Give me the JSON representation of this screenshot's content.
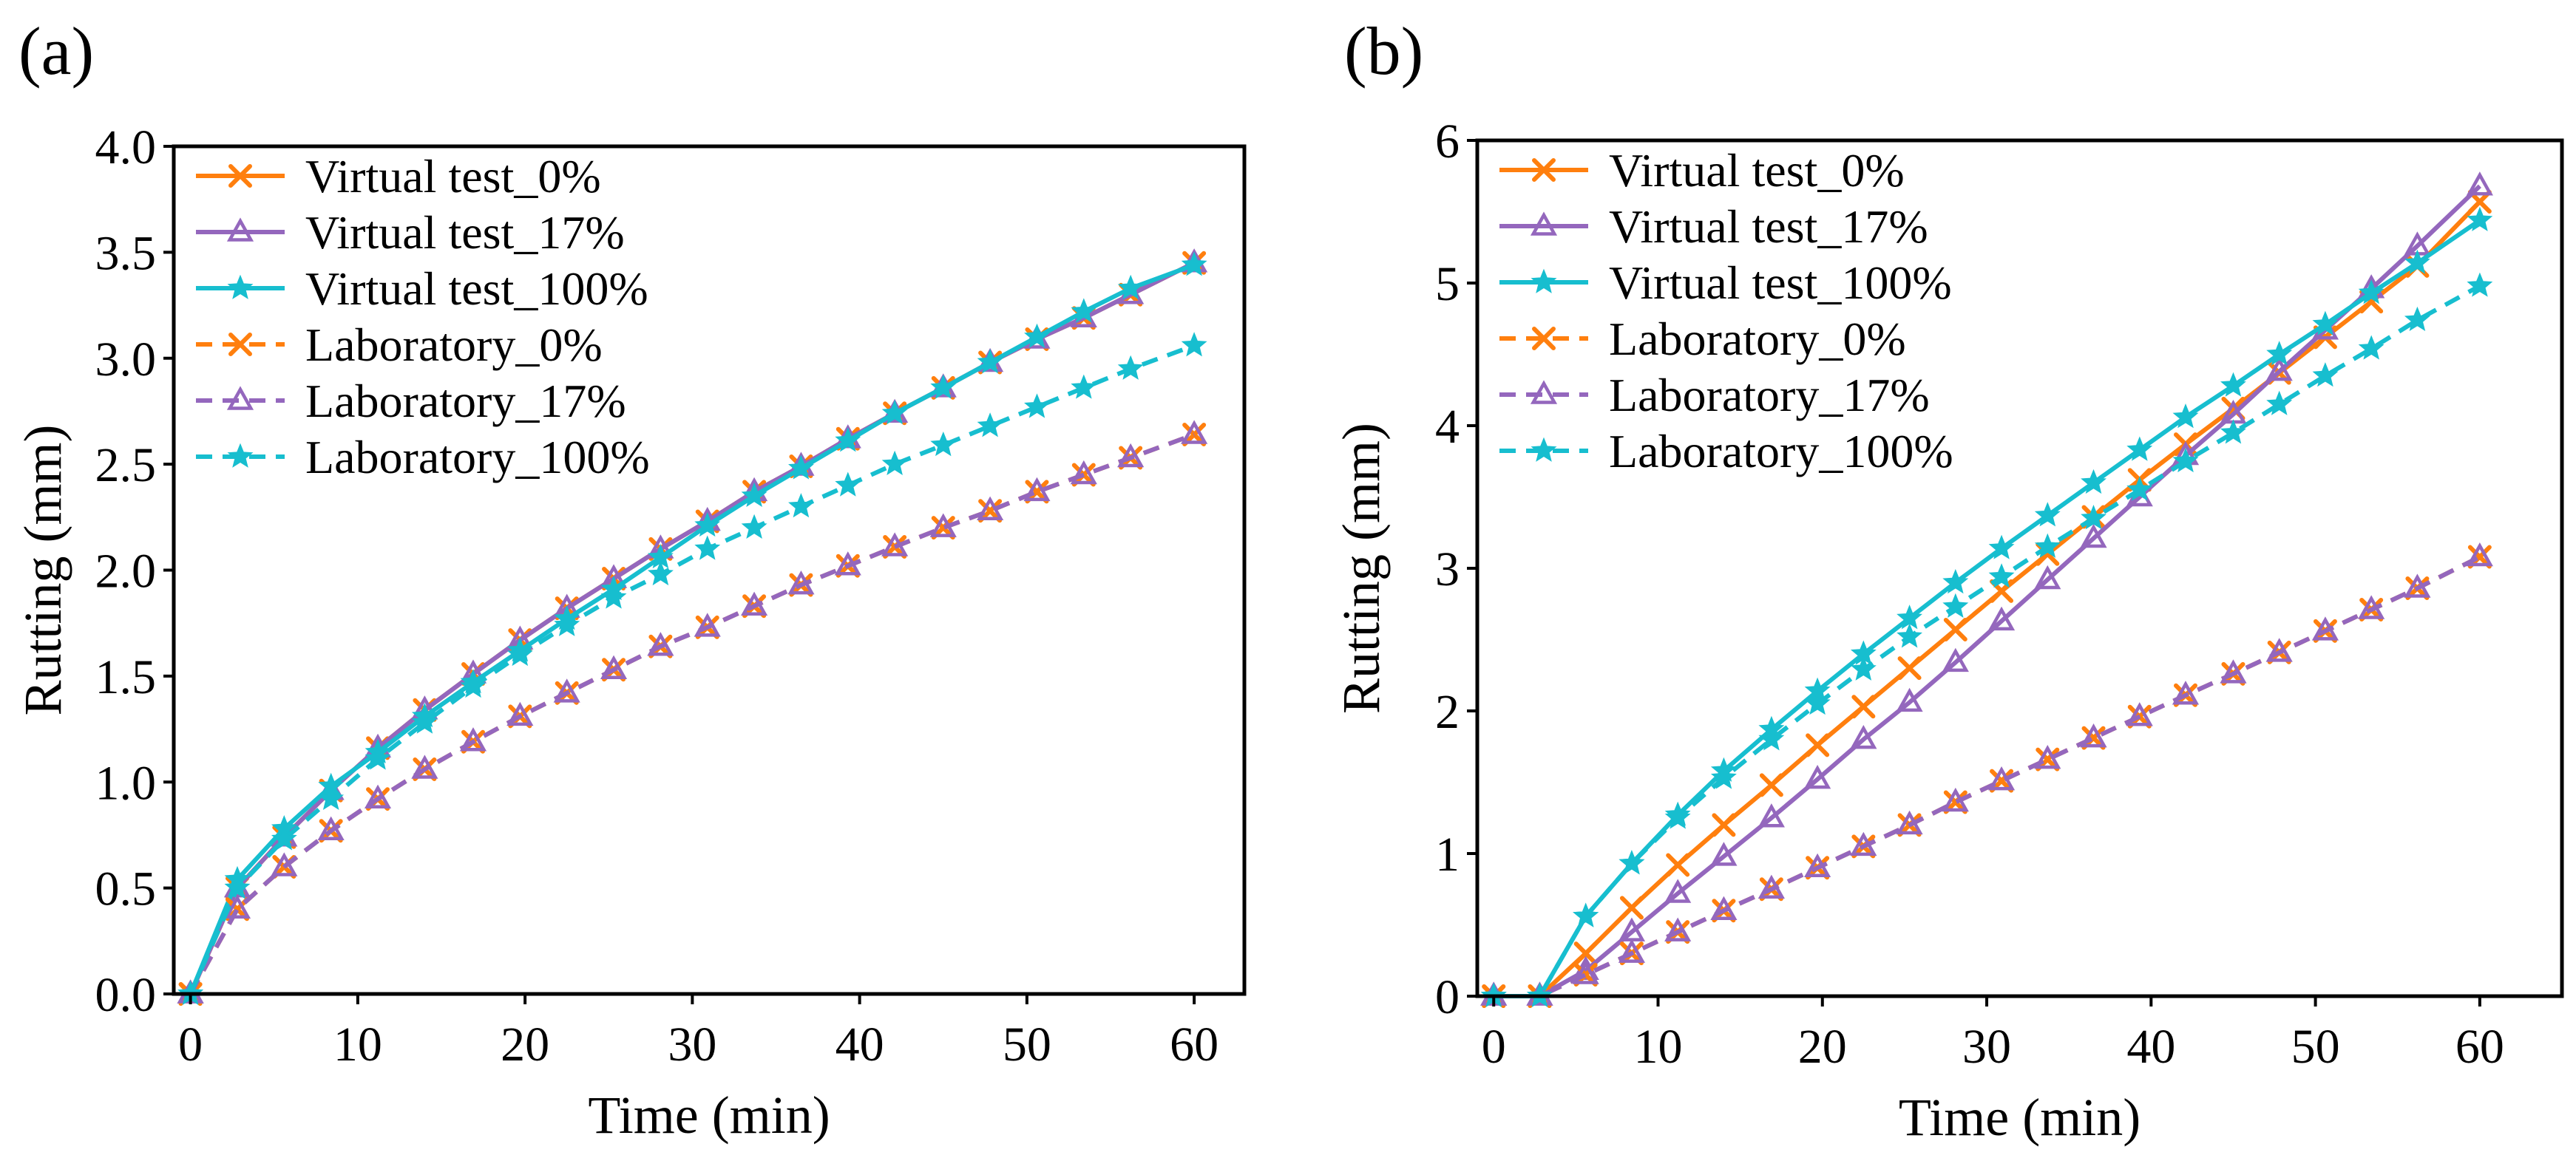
{
  "chart_data": [
    {
      "panel_label": "(a)",
      "type": "line",
      "xlabel": "Time (min)",
      "ylabel": "Rutting (mm)",
      "xlim": [
        -1,
        63
      ],
      "ylim": [
        0.0,
        4.0
      ],
      "xticks": [
        0,
        10,
        20,
        30,
        40,
        50,
        60
      ],
      "xtick_labels": [
        "0",
        "10",
        "20",
        "30",
        "40",
        "50",
        "60"
      ],
      "yticks": [
        0.0,
        0.5,
        1.0,
        1.5,
        2.0,
        2.5,
        3.0,
        3.5,
        4.0
      ],
      "ytick_labels": [
        "0.0",
        "0.5",
        "1.0",
        "1.5",
        "2.0",
        "2.5",
        "3.0",
        "3.5",
        "4.0"
      ],
      "legend_position": "upper-left",
      "x": [
        0,
        2.8,
        5.6,
        8.4,
        11.2,
        14.0,
        16.9,
        19.7,
        22.5,
        25.3,
        28.1,
        30.9,
        33.7,
        36.5,
        39.3,
        42.1,
        45.0,
        47.8,
        50.6,
        53.4,
        56.2,
        60.0
      ],
      "series": [
        {
          "name": "Virtual test_0%",
          "color": "#ff7f0e",
          "marker": "x",
          "dashed": false,
          "values": [
            0.0,
            0.5,
            0.74,
            0.96,
            1.16,
            1.34,
            1.51,
            1.67,
            1.82,
            1.96,
            2.1,
            2.23,
            2.37,
            2.49,
            2.62,
            2.74,
            2.86,
            2.98,
            3.09,
            3.19,
            3.3,
            3.45
          ]
        },
        {
          "name": "Virtual test_17%",
          "color": "#9467bd",
          "marker": "triangle",
          "dashed": false,
          "values": [
            0.0,
            0.5,
            0.74,
            0.96,
            1.16,
            1.34,
            1.51,
            1.67,
            1.82,
            1.96,
            2.1,
            2.23,
            2.37,
            2.49,
            2.62,
            2.74,
            2.86,
            2.98,
            3.09,
            3.19,
            3.3,
            3.45
          ]
        },
        {
          "name": "Virtual test_100%",
          "color": "#17becf",
          "marker": "star",
          "dashed": false,
          "values": [
            0.0,
            0.54,
            0.78,
            0.98,
            1.14,
            1.31,
            1.47,
            1.62,
            1.77,
            1.91,
            2.06,
            2.21,
            2.35,
            2.48,
            2.61,
            2.74,
            2.86,
            2.98,
            3.1,
            3.22,
            3.33,
            3.44
          ]
        },
        {
          "name": "Laboratory_0%",
          "color": "#ff7f0e",
          "marker": "x",
          "dashed": true,
          "values": [
            0.0,
            0.4,
            0.6,
            0.77,
            0.92,
            1.06,
            1.19,
            1.31,
            1.42,
            1.53,
            1.64,
            1.73,
            1.83,
            1.93,
            2.02,
            2.11,
            2.2,
            2.28,
            2.37,
            2.45,
            2.53,
            2.64
          ]
        },
        {
          "name": "Laboratory_17%",
          "color": "#9467bd",
          "marker": "triangle",
          "dashed": true,
          "values": [
            0.0,
            0.4,
            0.6,
            0.77,
            0.92,
            1.06,
            1.19,
            1.31,
            1.42,
            1.53,
            1.64,
            1.73,
            1.83,
            1.93,
            2.02,
            2.11,
            2.2,
            2.28,
            2.37,
            2.45,
            2.53,
            2.64
          ]
        },
        {
          "name": "Laboratory_100%",
          "color": "#17becf",
          "marker": "star",
          "dashed": true,
          "values": [
            0.0,
            0.5,
            0.73,
            0.92,
            1.11,
            1.28,
            1.45,
            1.6,
            1.74,
            1.87,
            1.98,
            2.1,
            2.2,
            2.3,
            2.4,
            2.5,
            2.59,
            2.68,
            2.77,
            2.86,
            2.95,
            3.06
          ]
        }
      ]
    },
    {
      "panel_label": "(b)",
      "type": "line",
      "xlabel": "Time (min)",
      "ylabel": "Rutting (mm)",
      "xlim": [
        -1,
        65
      ],
      "ylim": [
        0,
        6
      ],
      "xticks": [
        0,
        10,
        20,
        30,
        40,
        50,
        60
      ],
      "xtick_labels": [
        "0",
        "10",
        "20",
        "30",
        "40",
        "50",
        "60"
      ],
      "yticks": [
        0,
        1,
        2,
        3,
        4,
        5,
        6
      ],
      "ytick_labels": [
        "0",
        "1",
        "2",
        "3",
        "4",
        "5",
        "6"
      ],
      "legend_position": "upper-left",
      "x": [
        0,
        2.8,
        5.6,
        8.4,
        11.2,
        14.0,
        16.9,
        19.7,
        22.5,
        25.3,
        28.1,
        30.9,
        33.7,
        36.5,
        39.3,
        42.1,
        45.0,
        47.8,
        50.6,
        53.4,
        56.2,
        60.0
      ],
      "series": [
        {
          "name": "Virtual test_0%",
          "color": "#ff7f0e",
          "marker": "x",
          "dashed": false,
          "values": [
            0.0,
            0.0,
            0.3,
            0.62,
            0.92,
            1.2,
            1.48,
            1.76,
            2.03,
            2.3,
            2.57,
            2.84,
            3.1,
            3.36,
            3.62,
            3.87,
            4.12,
            4.37,
            4.62,
            4.87,
            5.12,
            5.57
          ]
        },
        {
          "name": "Virtual test_17%",
          "color": "#9467bd",
          "marker": "triangle",
          "dashed": false,
          "values": [
            0.0,
            0.0,
            0.18,
            0.45,
            0.72,
            0.98,
            1.25,
            1.52,
            1.8,
            2.06,
            2.34,
            2.63,
            2.92,
            3.21,
            3.5,
            3.79,
            4.08,
            4.38,
            4.67,
            4.96,
            5.26,
            5.68
          ]
        },
        {
          "name": "Virtual test_100%",
          "color": "#17becf",
          "marker": "star",
          "dashed": false,
          "values": [
            0.0,
            0.0,
            0.56,
            0.93,
            1.27,
            1.58,
            1.87,
            2.14,
            2.4,
            2.65,
            2.9,
            3.14,
            3.37,
            3.6,
            3.83,
            4.06,
            4.28,
            4.5,
            4.71,
            4.93,
            5.14,
            5.44
          ]
        },
        {
          "name": "Laboratory_0%",
          "color": "#ff7f0e",
          "marker": "x",
          "dashed": true,
          "values": [
            0.0,
            0.0,
            0.15,
            0.3,
            0.45,
            0.6,
            0.75,
            0.9,
            1.05,
            1.2,
            1.36,
            1.51,
            1.66,
            1.81,
            1.96,
            2.11,
            2.26,
            2.41,
            2.56,
            2.71,
            2.86,
            3.08
          ]
        },
        {
          "name": "Laboratory_17%",
          "color": "#9467bd",
          "marker": "triangle",
          "dashed": true,
          "values": [
            0.0,
            0.0,
            0.15,
            0.3,
            0.45,
            0.6,
            0.75,
            0.9,
            1.05,
            1.2,
            1.36,
            1.51,
            1.66,
            1.81,
            1.96,
            2.11,
            2.26,
            2.41,
            2.56,
            2.71,
            2.86,
            3.08
          ]
        },
        {
          "name": "Laboratory_100%",
          "color": "#17becf",
          "marker": "star",
          "dashed": true,
          "values": [
            0.0,
            0.0,
            0.56,
            0.93,
            1.25,
            1.53,
            1.8,
            2.05,
            2.29,
            2.52,
            2.73,
            2.94,
            3.15,
            3.35,
            3.55,
            3.75,
            3.95,
            4.15,
            4.35,
            4.54,
            4.74,
            4.98
          ]
        }
      ]
    }
  ]
}
